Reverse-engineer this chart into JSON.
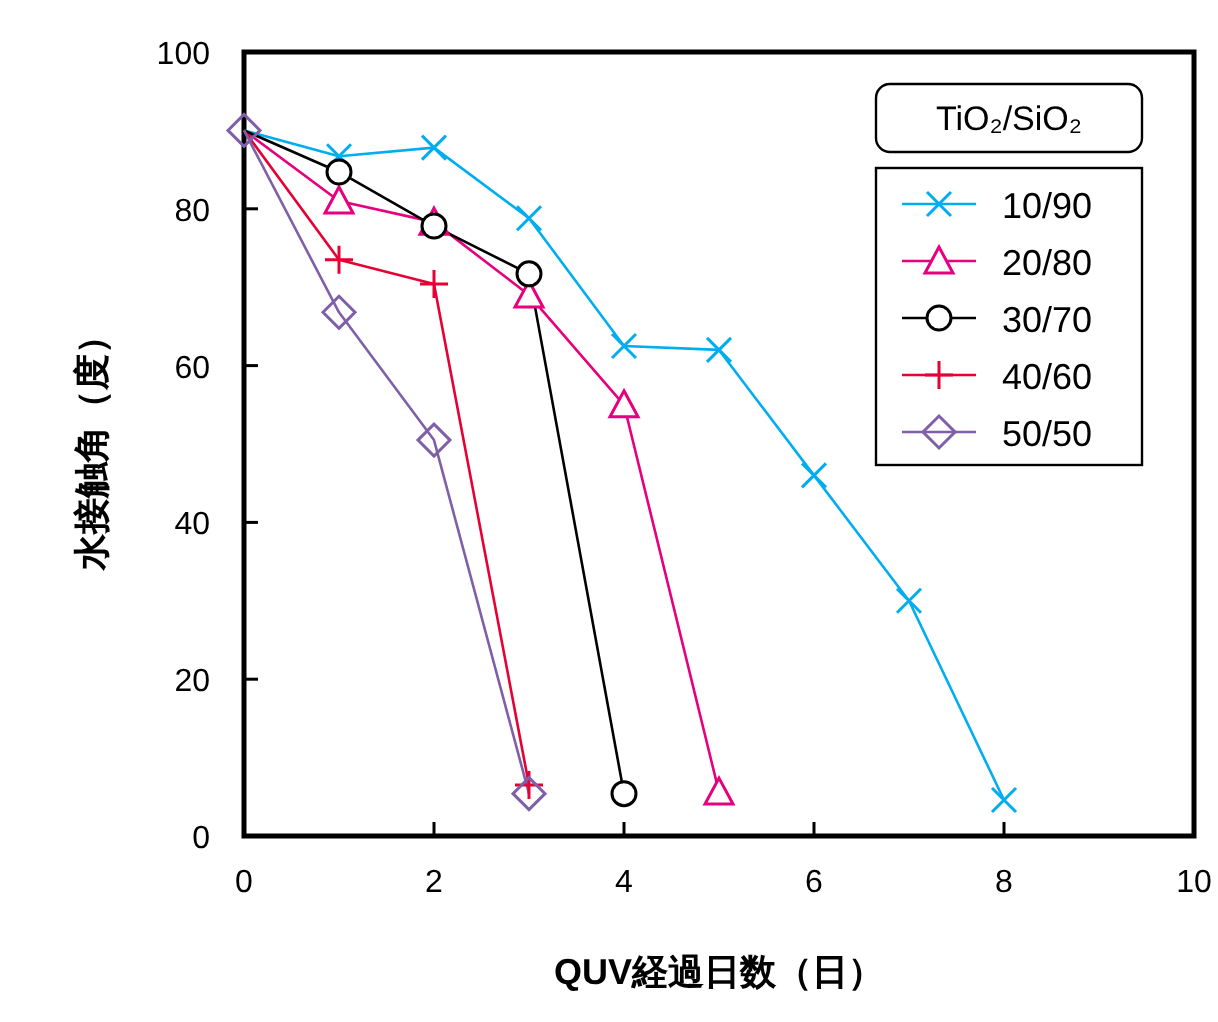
{
  "chart_data": {
    "type": "line",
    "xlabel": "QUV経過日数（日）",
    "ylabel": "水接触角（度）",
    "legend_title": "TiO₂/SiO₂",
    "xlim": [
      0,
      10
    ],
    "xticks": [
      0,
      2,
      4,
      6,
      8,
      10
    ],
    "ylim": [
      0,
      100
    ],
    "yticks": [
      0,
      20,
      40,
      60,
      80,
      100
    ],
    "grid": false,
    "legend": "top right",
    "line_style": "solid",
    "series": [
      {
        "name": "10/90",
        "color": "#00aeef",
        "marker": "cross",
        "x": [
          0,
          1,
          2,
          3,
          4,
          5,
          6,
          7,
          8
        ],
        "values": [
          90,
          86.7,
          87.8,
          78.8,
          62.5,
          62,
          46,
          30,
          4.6
        ]
      },
      {
        "name": "20/80",
        "color": "#e6007e",
        "marker": "triangle",
        "x": [
          0,
          1,
          2,
          3,
          4,
          5
        ],
        "values": [
          90,
          81,
          78.3,
          69,
          55,
          5.6
        ]
      },
      {
        "name": "30/70",
        "color": "#000000",
        "marker": "circle",
        "x": [
          0,
          1,
          2,
          3,
          4
        ],
        "values": [
          90,
          84.7,
          77.8,
          71.7,
          5.4
        ]
      },
      {
        "name": "40/60",
        "color": "#e60033",
        "marker": "plus",
        "x": [
          0,
          1,
          2,
          3
        ],
        "values": [
          90,
          73.5,
          70.4,
          6.5
        ]
      },
      {
        "name": "50/50",
        "color": "#7f5fa8",
        "marker": "diamond",
        "x": [
          0,
          1,
          2,
          3
        ],
        "values": [
          90,
          66.8,
          50.5,
          5.4
        ]
      }
    ]
  }
}
